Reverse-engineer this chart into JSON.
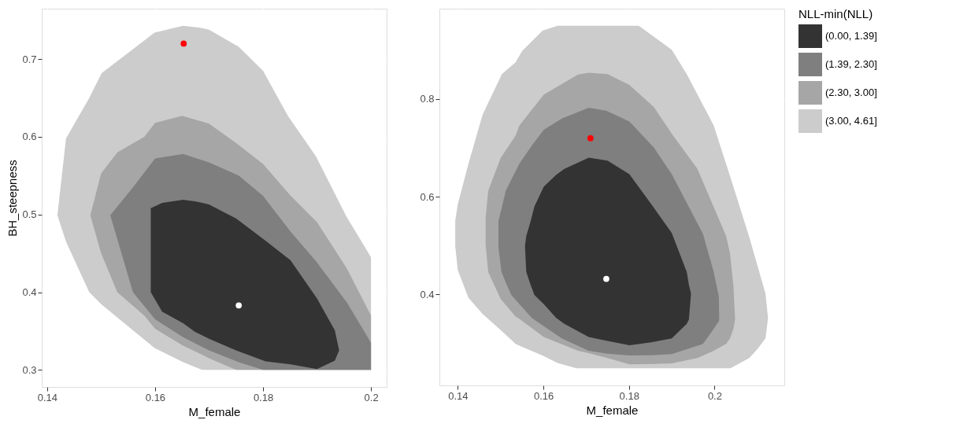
{
  "chart_data": [
    {
      "type": "area",
      "xlabel": "M_female",
      "ylabel": "BH_steepness",
      "xlim": [
        0.139,
        0.2029
      ],
      "ylim": [
        0.278,
        0.765
      ],
      "xticks": [
        0.14,
        0.16,
        0.18,
        0.2
      ],
      "yticks": [
        0.3,
        0.4,
        0.5,
        0.6,
        0.7
      ],
      "grid": true,
      "legend": false,
      "series": [
        {
          "color": "#333333",
          "x": [
            0.1592,
            0.1613,
            0.1652,
            0.1674,
            0.17,
            0.175,
            0.1805,
            0.1851,
            0.19,
            0.1933,
            0.1941
          ],
          "values": [
            null,
            null,
            null,
            null,
            null,
            null,
            null,
            null,
            null,
            null,
            null
          ],
          "upper": [
            0.508,
            0.515,
            0.519,
            0.517,
            0.513,
            0.495,
            0.466,
            0.441,
            0.392,
            0.351,
            0.325
          ],
          "lower": [
            0.4,
            0.375,
            0.36,
            0.349,
            0.34,
            0.325,
            0.311,
            0.307,
            0.301,
            0.312,
            0.325
          ]
        },
        {
          "color": "#7f7f7f",
          "x": [
            0.1517,
            0.1559,
            0.16,
            0.1652,
            0.17,
            0.1755,
            0.18,
            0.1851,
            0.1898,
            0.1956,
            0.2
          ],
          "values": [
            null,
            null,
            null,
            null,
            null,
            null,
            null,
            null,
            null,
            null,
            null
          ],
          "upper": [
            0.499,
            0.535,
            0.572,
            0.578,
            0.567,
            0.55,
            0.524,
            0.478,
            0.44,
            0.386,
            0.335
          ],
          "lower": [
            0.499,
            0.4,
            0.365,
            0.342,
            0.325,
            0.31,
            0.3,
            0.3,
            0.3,
            0.3,
            0.3
          ]
        },
        {
          "color": "#a6a6a6",
          "x": [
            0.148,
            0.15,
            0.153,
            0.158,
            0.16,
            0.165,
            0.17,
            0.175,
            0.18,
            0.185,
            0.19,
            0.1955,
            0.2
          ],
          "values": [
            null,
            null,
            null,
            null,
            null,
            null,
            null,
            null,
            null,
            null,
            null,
            null,
            null
          ],
          "upper": [
            0.499,
            0.553,
            0.58,
            0.6,
            0.618,
            0.627,
            0.617,
            0.592,
            0.565,
            0.525,
            0.49,
            0.431,
            0.37
          ],
          "lower": [
            0.499,
            0.45,
            0.4,
            0.37,
            0.353,
            0.332,
            0.315,
            0.3,
            0.3,
            0.3,
            0.3,
            0.3,
            0.3
          ]
        },
        {
          "color": "#cccccc",
          "x": [
            0.1419,
            0.1435,
            0.1478,
            0.1501,
            0.1599,
            0.1652,
            0.1687,
            0.17,
            0.1755,
            0.18,
            0.1846,
            0.1898,
            0.1954,
            0.2
          ],
          "values": [
            null,
            null,
            null,
            null,
            null,
            null,
            null,
            null,
            null,
            null,
            null,
            null,
            null,
            null
          ],
          "upper": [
            0.499,
            0.598,
            0.65,
            0.682,
            0.734,
            0.743,
            0.74,
            0.738,
            0.716,
            0.685,
            0.627,
            0.575,
            0.498,
            0.445
          ],
          "lower": [
            0.499,
            0.465,
            0.4,
            0.384,
            0.328,
            0.31,
            0.3,
            0.3,
            0.3,
            0.3,
            0.3,
            0.3,
            0.3,
            0.3
          ]
        },
        {
          "type": "scatter",
          "color": "#ff0000",
          "x": [
            0.1653
          ],
          "values": [
            0.72
          ]
        },
        {
          "type": "scatter",
          "color": "#ffffff",
          "x": [
            0.1755
          ],
          "values": [
            0.383
          ]
        }
      ]
    },
    {
      "type": "area",
      "xlabel": "M_female",
      "legend_title": "NLL-min(NLL)",
      "xlim": [
        0.1357,
        0.2163
      ],
      "ylim": [
        0.214,
        0.985
      ],
      "xticks": [
        0.14,
        0.16,
        0.18,
        0.2
      ],
      "yticks": [
        0.4,
        0.6,
        0.8
      ],
      "grid": true,
      "legend": "right",
      "series": [
        {
          "name": "(0.00, 1.39]",
          "color": "#333333",
          "x": [
            0.1557,
            0.156,
            0.157,
            0.1579,
            0.1601,
            0.163,
            0.1649,
            0.1706,
            0.175,
            0.1801,
            0.1852,
            0.19,
            0.1935,
            0.194,
            0.1945
          ],
          "values": [
            null,
            null,
            null,
            null,
            null,
            null,
            null,
            null,
            null,
            null,
            null,
            null,
            null,
            null,
            null
          ],
          "upper": [
            0.499,
            0.52,
            0.549,
            0.58,
            0.621,
            0.645,
            0.657,
            0.68,
            0.674,
            0.646,
            0.585,
            0.526,
            0.446,
            0.42,
            0.402
          ],
          "lower": [
            0.499,
            0.446,
            0.42,
            0.399,
            0.38,
            0.352,
            0.34,
            0.313,
            0.305,
            0.296,
            0.302,
            0.31,
            0.34,
            0.349,
            0.402
          ]
        },
        {
          "name": "(1.39, 2.30]",
          "color": "#7f7f7f",
          "x": [
            0.1495,
            0.1502,
            0.1512,
            0.1525,
            0.1544,
            0.1573,
            0.1601,
            0.1643,
            0.1706,
            0.1747,
            0.1801,
            0.1858,
            0.19,
            0.1973,
            0.1998,
            0.201,
            0.2011
          ],
          "values": [
            null,
            null,
            null,
            null,
            null,
            null,
            null,
            null,
            null,
            null,
            null,
            null,
            null,
            null,
            null,
            null,
            null
          ],
          "upper": [
            0.551,
            0.575,
            0.612,
            0.635,
            0.668,
            0.705,
            0.737,
            0.76,
            0.782,
            0.776,
            0.754,
            0.701,
            0.646,
            0.524,
            0.446,
            0.396,
            0.349
          ],
          "lower": [
            0.496,
            0.446,
            0.425,
            0.399,
            0.38,
            0.352,
            0.335,
            0.31,
            0.285,
            0.279,
            0.275,
            0.276,
            0.278,
            0.299,
            0.33,
            0.345,
            0.349
          ]
        },
        {
          "name": "(2.30, 3.00]",
          "color": "#a6a6a6",
          "x": [
            0.1465,
            0.1471,
            0.15,
            0.1535,
            0.1544,
            0.1601,
            0.1681,
            0.1706,
            0.175,
            0.1801,
            0.1858,
            0.19,
            0.196,
            0.1998,
            0.2027,
            0.2036,
            0.2044,
            0.2048
          ],
          "values": [
            null,
            null,
            null,
            null,
            null,
            null,
            null,
            null,
            null,
            null,
            null,
            null,
            null,
            null,
            null,
            null,
            null,
            null
          ],
          "upper": [
            0.557,
            0.612,
            0.679,
            0.725,
            0.746,
            0.809,
            0.85,
            0.854,
            0.851,
            0.829,
            0.784,
            0.729,
            0.657,
            0.579,
            0.52,
            0.485,
            0.418,
            0.349
          ],
          "lower": [
            0.502,
            0.446,
            0.391,
            0.355,
            0.35,
            0.313,
            0.285,
            0.28,
            0.27,
            0.257,
            0.258,
            0.259,
            0.27,
            0.285,
            0.299,
            0.31,
            0.33,
            0.349
          ]
        },
        {
          "name": "(3.00, 4.61]",
          "color": "#cccccc",
          "x": [
            0.1394,
            0.14,
            0.1425,
            0.1458,
            0.1503,
            0.1535,
            0.155,
            0.1598,
            0.1633,
            0.1677,
            0.1823,
            0.19,
            0.1935,
            0.1998,
            0.2037,
            0.2081,
            0.21,
            0.2119,
            0.2125
          ],
          "values": [
            null,
            null,
            null,
            null,
            null,
            null,
            null,
            null,
            null,
            null,
            null,
            null,
            null,
            null,
            null,
            null,
            null,
            null,
            null
          ],
          "upper": [
            0.551,
            0.585,
            0.668,
            0.768,
            0.851,
            0.875,
            0.898,
            0.94,
            0.95,
            0.95,
            0.95,
            0.901,
            0.851,
            0.746,
            0.64,
            0.518,
            0.46,
            0.402,
            0.352
          ],
          "lower": [
            0.499,
            0.45,
            0.393,
            0.36,
            0.325,
            0.299,
            0.293,
            0.275,
            0.26,
            0.249,
            0.249,
            0.249,
            0.249,
            0.249,
            0.249,
            0.27,
            0.288,
            0.31,
            0.352
          ]
        },
        {
          "type": "scatter",
          "color": "#ff0000",
          "x": [
            0.171
          ],
          "values": [
            0.72
          ]
        },
        {
          "type": "scatter",
          "color": "#ffffff",
          "x": [
            0.1747
          ],
          "values": [
            0.432
          ]
        }
      ]
    }
  ]
}
